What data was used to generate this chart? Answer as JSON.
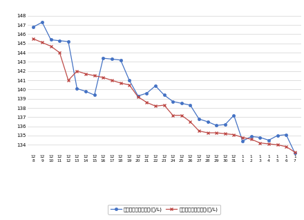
{
  "x_labels_top": [
    "12",
    "12",
    "12",
    "12",
    "12",
    "12",
    "12",
    "12",
    "12",
    "12",
    "12",
    "12",
    "12",
    "12",
    "12",
    "12",
    "12",
    "12",
    "12",
    "12",
    "12",
    "12",
    "12",
    "12",
    "1",
    "1",
    "1",
    "1",
    "1",
    "1",
    "1"
  ],
  "x_labels_bot": [
    "8",
    "9",
    "10",
    "11",
    "12",
    "13",
    "14",
    "15",
    "16",
    "17",
    "18",
    "19",
    "20",
    "21",
    "22",
    "23",
    "24",
    "25",
    "26",
    "27",
    "28",
    "29",
    "30",
    "31",
    "1",
    "2",
    "3",
    "4",
    "5",
    "6",
    "7"
  ],
  "blue_values": [
    146.8,
    147.3,
    145.4,
    145.3,
    145.2,
    140.1,
    139.8,
    139.4,
    143.4,
    143.3,
    143.2,
    141.0,
    139.3,
    139.6,
    140.4,
    139.4,
    138.7,
    138.5,
    138.3,
    136.8,
    136.5,
    136.1,
    136.2,
    137.2,
    134.4,
    134.9,
    134.8,
    134.5,
    135.0,
    135.1,
    133.1
  ],
  "red_values": [
    145.5,
    145.1,
    144.7,
    144.0,
    141.0,
    142.0,
    141.7,
    141.5,
    141.3,
    141.0,
    140.7,
    140.5,
    139.2,
    138.6,
    138.2,
    138.3,
    137.2,
    137.2,
    136.5,
    135.5,
    135.3,
    135.3,
    135.2,
    135.1,
    134.8,
    134.6,
    134.2,
    134.1,
    134.0,
    133.8,
    133.2
  ],
  "ylim_min": 133,
  "ylim_max": 149,
  "ytick_min": 134,
  "ytick_max": 148,
  "blue_color": "#4472C4",
  "red_color": "#BE4B48",
  "blue_label": "レギュラー看板価格(円/L)",
  "red_label": "レギュラー実売価格(円/L)",
  "bg_color": "#FFFFFF",
  "grid_color": "#D9D9D9",
  "spine_color": "#D9D9D9"
}
